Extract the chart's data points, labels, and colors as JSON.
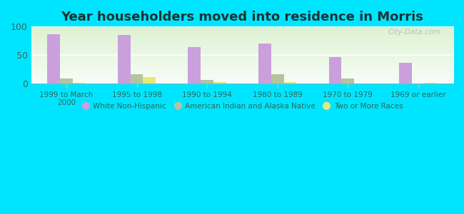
{
  "title": "Year householders moved into residence in Morris",
  "categories": [
    "1999 to March\n2000",
    "1995 to 1998",
    "1990 to 1994",
    "1980 to 1989",
    "1970 to 1979",
    "1969 or earlier"
  ],
  "series": {
    "White Non-Hispanic": [
      87,
      85,
      64,
      70,
      46,
      37
    ],
    "American Indian and Alaska Native": [
      9,
      16,
      7,
      16,
      9,
      0
    ],
    "Two or More Races": [
      2,
      12,
      3,
      3,
      0,
      2
    ]
  },
  "bar_colors": {
    "White Non-Hispanic": "#c9a0dc",
    "American Indian and Alaska Native": "#b5c4a0",
    "Two or More Races": "#e8e87a"
  },
  "bar_width": 0.18,
  "ylim": [
    0,
    100
  ],
  "yticks": [
    0,
    50,
    100
  ],
  "fig_bg_color": "#00e5ff",
  "plot_bg_top": "#f0faf8",
  "plot_bg_bottom": "#d8f0dc",
  "grid_color": "#e0e8e0",
  "title_fontsize": 13,
  "watermark": "City-Data.com"
}
